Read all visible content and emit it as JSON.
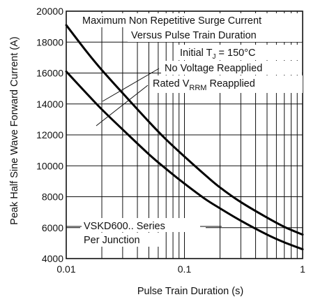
{
  "chart_data": {
    "type": "line",
    "xscale": "log",
    "xlim": [
      0.01,
      1
    ],
    "ylim": [
      4000,
      20000
    ],
    "xlabel": "Pulse Train Duration (s)",
    "ylabel": "Peak Half Sine Wave Forward Current (A)",
    "x_ticks": [
      0.01,
      0.1,
      1
    ],
    "x_tick_labels": [
      "0.01",
      "0.1",
      "1"
    ],
    "y_ticks": [
      4000,
      6000,
      8000,
      10000,
      12000,
      14000,
      16000,
      18000,
      20000
    ],
    "y_tick_labels": [
      "4000",
      "6000",
      "8000",
      "10000",
      "12000",
      "14000",
      "16000",
      "18000",
      "20000"
    ],
    "grid": true,
    "annotations": {
      "title_line1": "Maximum Non Repetitive Surge Current",
      "title_line2": "Versus Pulse Train Duration",
      "condition_prefix": "Initial T",
      "condition_sub": "J",
      "condition_value": " = 150°C",
      "no_voltage": "No Voltage Reapplied",
      "rated_prefix": "Rated V",
      "rated_sub": "RRM",
      "rated_suffix": " Reapplied",
      "series_label": "VSKD600.. Series",
      "junction_label": "Per Junction"
    },
    "series": [
      {
        "name": "No Voltage Reapplied",
        "x": [
          0.01,
          0.015,
          0.02,
          0.03,
          0.05,
          0.07,
          0.1,
          0.15,
          0.2,
          0.3,
          0.5,
          0.7,
          1.0
        ],
        "y": [
          19100,
          17350,
          16200,
          14700,
          12850,
          11700,
          10600,
          9400,
          8600,
          7650,
          6650,
          6050,
          5550
        ]
      },
      {
        "name": "Rated VRRM Reapplied",
        "x": [
          0.01,
          0.015,
          0.02,
          0.03,
          0.05,
          0.07,
          0.1,
          0.15,
          0.2,
          0.3,
          0.5,
          0.7,
          1.0
        ],
        "y": [
          16100,
          14650,
          13650,
          12350,
          10750,
          9800,
          8850,
          7850,
          7250,
          6450,
          5550,
          5050,
          4600
        ]
      }
    ]
  }
}
